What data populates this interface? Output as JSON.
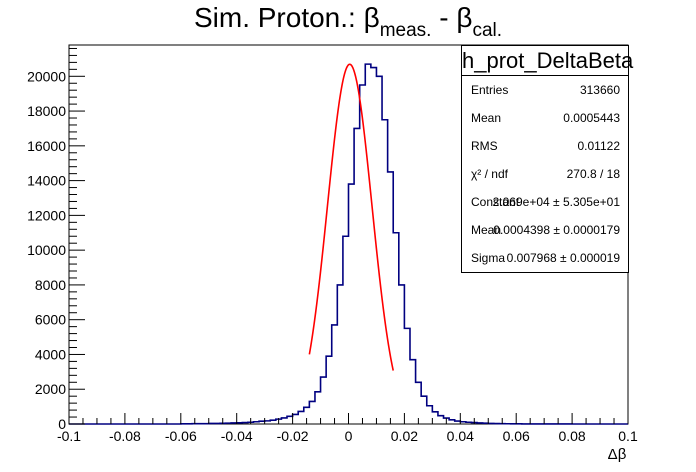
{
  "title": {
    "main": "Sim. Proton.: ",
    "beta1": "β",
    "sub1": "meas.",
    "mid": " - ",
    "beta2": "β",
    "sub2": "cal."
  },
  "stats_box": {
    "name": "h_prot_DeltaBeta",
    "rows": [
      {
        "key": "Entries",
        "value": "313660"
      },
      {
        "key": "Mean",
        "value": "0.0005443"
      },
      {
        "key": "RMS",
        "value": "0.01122"
      },
      {
        "key": "χ² / ndf",
        "value": "270.8 / 18"
      },
      {
        "key": "Constant",
        "value": "2.069e+04 ± 5.305e+01"
      },
      {
        "key": "Mean",
        "value": "0.0004398 ± 0.0000179"
      },
      {
        "key": "Sigma",
        "value": "0.007968 ± 0.000019"
      }
    ]
  },
  "chart_data": {
    "type": "histogram",
    "xlabel": "Δβ",
    "ylabel": "",
    "xlim": [
      -0.1,
      0.1
    ],
    "ylim": [
      0,
      21800
    ],
    "x_ticks": [
      "-0.1",
      "-0.08",
      "-0.06",
      "-0.04",
      "-0.02",
      "0",
      "0.02",
      "0.04",
      "0.06",
      "0.08",
      "0.1"
    ],
    "y_ticks": [
      "0",
      "2000",
      "4000",
      "6000",
      "8000",
      "10000",
      "12000",
      "14000",
      "16000",
      "18000",
      "20000"
    ],
    "bins": {
      "start": -0.1,
      "width": 0.002,
      "count": 100
    },
    "values": [
      0,
      0,
      0,
      0,
      0,
      0,
      0,
      0,
      0,
      0,
      0,
      0,
      0,
      0,
      0,
      0,
      0,
      0,
      0,
      0,
      10,
      10,
      20,
      20,
      20,
      30,
      30,
      40,
      50,
      60,
      70,
      80,
      100,
      130,
      160,
      180,
      220,
      280,
      350,
      440,
      550,
      720,
      960,
      1300,
      1850,
      2700,
      3900,
      5700,
      8000,
      10800,
      13800,
      17000,
      19500,
      20700,
      20500,
      20000,
      17500,
      14500,
      11000,
      8000,
      5500,
      3700,
      2400,
      1600,
      1050,
      700,
      480,
      340,
      240,
      170,
      130,
      100,
      80,
      60,
      45,
      35,
      25,
      20,
      15,
      10,
      8,
      6,
      5,
      4,
      3,
      2,
      2,
      1,
      1,
      1,
      0,
      0,
      0,
      0,
      0,
      0,
      0,
      0,
      0,
      0
    ],
    "fit": {
      "type": "gaus",
      "constant": 20690,
      "mean": 0.0004398,
      "sigma": 0.007968,
      "range": [
        -0.014,
        0.016
      ]
    },
    "colors": {
      "histogram": "#000080",
      "fit": "#ff0000"
    }
  }
}
